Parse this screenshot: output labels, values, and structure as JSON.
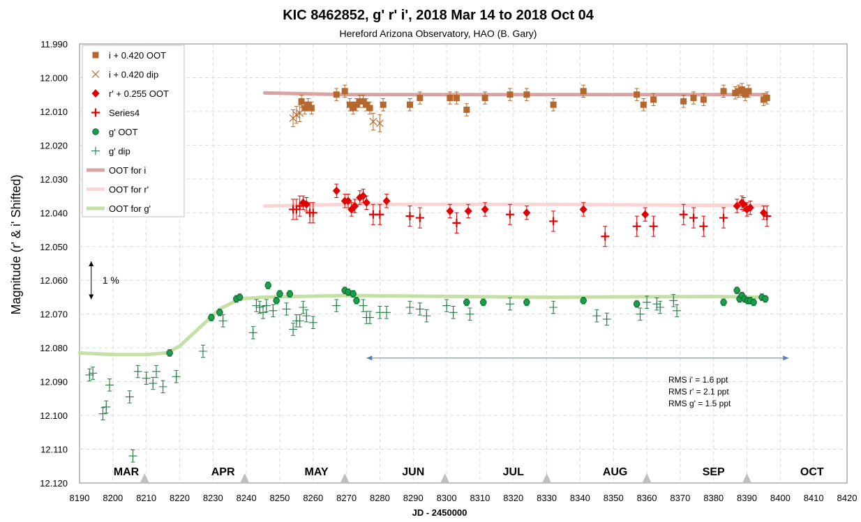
{
  "chart_data": {
    "type": "scatter",
    "title": "KIC 8462852, g' r' i', 2018 Mar 14 to 2018 Oct 04",
    "subtitle": "Hereford Arizona Observatory, HAO (B. Gary)",
    "xlabel": "JD - 2450000",
    "ylabel": "Magnitude  (r' & i' Shifted)",
    "xlim": [
      8190,
      8420
    ],
    "ylim": [
      11.99,
      12.12
    ],
    "y_inverted": true,
    "grid": true,
    "x_ticks": [
      "8190",
      "8200",
      "8210",
      "8220",
      "8230",
      "8240",
      "8250",
      "8260",
      "8270",
      "8280",
      "8290",
      "8300",
      "8310",
      "8320",
      "8330",
      "8340",
      "8350",
      "8360",
      "8370",
      "8380",
      "8390",
      "8400",
      "8410",
      "8420"
    ],
    "y_ticks": [
      "11.990",
      "12.000",
      "12.010",
      "12.020",
      "12.030",
      "12.040",
      "12.050",
      "12.060",
      "12.070",
      "12.080",
      "12.090",
      "12.100",
      "12.110",
      "12.120"
    ],
    "legend_position": "top-left",
    "series": [
      {
        "name": "i + 0.420 OOT",
        "marker": "square",
        "color": "#b5682d",
        "err": 0.0018,
        "x": [
          8256.5,
          8257.5,
          8258.5,
          8259.5,
          8267,
          8269.5,
          8271,
          8272,
          8273,
          8274,
          8275,
          8276,
          8277,
          8281,
          8289,
          8292,
          8301,
          8303,
          8306,
          8311.5,
          8319,
          8324,
          8332,
          8341,
          8357,
          8359,
          8362,
          8371,
          8374,
          8377,
          8383,
          8386.5,
          8387.5,
          8388.5,
          8389.5,
          8390.5,
          8395,
          8396
        ],
        "y": [
          12.007,
          12.009,
          12.008,
          12.009,
          12.005,
          12.004,
          12.008,
          12.009,
          12.008,
          12.007,
          12.007,
          12.008,
          12.009,
          12.008,
          12.008,
          12.006,
          12.006,
          12.006,
          12.0095,
          12.006,
          12.005,
          12.005,
          12.008,
          12.004,
          12.005,
          12.008,
          12.0065,
          12.007,
          12.006,
          12.0065,
          12.004,
          12.0045,
          12.004,
          12.0035,
          12.005,
          12.004,
          12.0065,
          12.006
        ]
      },
      {
        "name": "i + 0.420 dip",
        "marker": "x",
        "color": "#b5682d",
        "err": 0.0025,
        "x": [
          8254,
          8255,
          8256,
          8278,
          8280
        ],
        "y": [
          12.012,
          12.011,
          12.0105,
          12.013,
          12.0135
        ]
      },
      {
        "name": "r' + 0.255 OOT",
        "marker": "diamond",
        "color": "#e00000",
        "err": 0.002,
        "x": [
          8267,
          8269.5,
          8270.5,
          8271.5,
          8272.5,
          8274,
          8275,
          8276,
          8282,
          8257,
          8258,
          8301,
          8306.5,
          8311.5,
          8324,
          8341,
          8359.5,
          8387,
          8388.5,
          8389,
          8390,
          8391,
          8395
        ],
        "y": [
          12.0335,
          12.0365,
          12.0365,
          12.039,
          12.038,
          12.0355,
          12.035,
          12.037,
          12.0365,
          12.037,
          12.0375,
          12.0395,
          12.0395,
          12.039,
          12.04,
          12.039,
          12.0405,
          12.038,
          12.037,
          12.0375,
          12.039,
          12.0385,
          12.04
        ]
      },
      {
        "name": "Series4",
        "marker": "plus",
        "color": "#e00000",
        "err": 0.003,
        "x": [
          8254,
          8255,
          8256,
          8259,
          8260,
          8278,
          8280,
          8289,
          8292,
          8303,
          8319,
          8332,
          8347.5,
          8357,
          8362,
          8371,
          8374,
          8377,
          8383,
          8396
        ],
        "y": [
          12.039,
          12.039,
          12.038,
          12.04,
          12.04,
          12.0405,
          12.0405,
          12.041,
          12.0415,
          12.043,
          12.0405,
          12.0425,
          12.047,
          12.044,
          12.044,
          12.0405,
          12.0415,
          12.044,
          12.0415,
          12.041
        ]
      },
      {
        "name": "g' OOT",
        "marker": "circle",
        "color": "#17a04a",
        "err": 0.001,
        "x": [
          8217,
          8229.5,
          8232,
          8237,
          8238,
          8246.5,
          8249,
          8250,
          8253,
          8269.5,
          8270.5,
          8272,
          8273,
          8306,
          8311,
          8324,
          8341,
          8357,
          8383,
          8387,
          8387.8,
          8388.5,
          8389.3,
          8390.2,
          8391,
          8392,
          8394.5,
          8395.5
        ],
        "y": [
          12.0815,
          12.071,
          12.0695,
          12.0655,
          12.065,
          12.0615,
          12.066,
          12.064,
          12.064,
          12.063,
          12.0635,
          12.064,
          12.066,
          12.0665,
          12.0665,
          12.0665,
          12.066,
          12.067,
          12.0665,
          12.063,
          12.0655,
          12.0645,
          12.0655,
          12.066,
          12.066,
          12.0665,
          12.065,
          12.0655
        ]
      },
      {
        "name": "g' dip",
        "marker": "plus-thin",
        "color": "#1f7a40",
        "err": 0.0018,
        "x": [
          8193,
          8194,
          8197,
          8198,
          8199,
          8205,
          8206,
          8207.5,
          8210,
          8212,
          8213,
          8215,
          8219,
          8227,
          8233,
          8242,
          8243,
          8244,
          8245,
          8246,
          8248,
          8252,
          8254,
          8255,
          8256,
          8257,
          8258,
          8260,
          8267,
          8275,
          8276,
          8277,
          8280,
          8282,
          8289,
          8292,
          8294,
          8300,
          8302,
          8307,
          8319,
          8332,
          8345,
          8348,
          8358,
          8360,
          8363,
          8364,
          8368,
          8369
        ],
        "y": [
          12.088,
          12.0875,
          12.0995,
          12.0975,
          12.091,
          12.0945,
          12.112,
          12.087,
          12.089,
          12.0905,
          12.087,
          12.0915,
          12.0885,
          12.081,
          12.072,
          12.0755,
          12.0675,
          12.068,
          12.0695,
          12.0675,
          12.069,
          12.0685,
          12.0745,
          12.072,
          12.072,
          12.068,
          12.0705,
          12.0725,
          12.0675,
          12.0675,
          12.071,
          12.071,
          12.0695,
          12.0695,
          12.068,
          12.0685,
          12.0705,
          12.0675,
          12.0695,
          12.07,
          12.067,
          12.068,
          12.0705,
          12.0715,
          12.07,
          12.0665,
          12.067,
          12.068,
          12.066,
          12.069
        ]
      }
    ],
    "trend_lines": [
      {
        "name": "OOT for i",
        "color": "#d9a3a3",
        "points": [
          [
            8245.5,
            12.0045
          ],
          [
            8270,
            12.005
          ],
          [
            8330,
            12.005
          ],
          [
            8380,
            12.005
          ],
          [
            8396,
            12.005
          ]
        ]
      },
      {
        "name": "OOT for r'",
        "color": "#fcd4d4",
        "points": [
          [
            8245.5,
            12.038
          ],
          [
            8270,
            12.0375
          ],
          [
            8330,
            12.0375
          ],
          [
            8380,
            12.0378
          ],
          [
            8396,
            12.0378
          ]
        ]
      },
      {
        "name": "OOT for g'",
        "color": "#c5e0a5",
        "points": [
          [
            8190,
            12.0815
          ],
          [
            8200,
            12.082
          ],
          [
            8210,
            12.082
          ],
          [
            8216,
            12.0815
          ],
          [
            8220,
            12.0795
          ],
          [
            8226,
            12.074
          ],
          [
            8232,
            12.0685
          ],
          [
            8238,
            12.0655
          ],
          [
            8245,
            12.065
          ],
          [
            8270,
            12.0645
          ],
          [
            8330,
            12.065
          ],
          [
            8380,
            12.0648
          ],
          [
            8396,
            12.065
          ]
        ]
      }
    ],
    "months": [
      {
        "label": "MAR",
        "x": 8204
      },
      {
        "label": "APR",
        "x": 8233
      },
      {
        "label": "MAY",
        "x": 8261
      },
      {
        "label": "JUN",
        "x": 8290
      },
      {
        "label": "JUL",
        "x": 8320
      },
      {
        "label": "AUG",
        "x": 8350.5
      },
      {
        "label": "SEP",
        "x": 8380
      },
      {
        "label": "OCT",
        "x": 8409.5
      }
    ],
    "triangle_markers_x": [
      8209.5,
      8239.5,
      8269.5,
      8299.5,
      8330,
      8360,
      8390
    ],
    "annotations": {
      "pct_label": "1 %",
      "pct_span": [
        12.055,
        12.065
      ],
      "pct_x": 8193.5,
      "range_arrow": {
        "x1": 8276,
        "x2": 8402.5,
        "y": 12.083
      },
      "rms": [
        "RMS i'  = 1.6 ppt",
        "RMS r'  = 2.1 ppt",
        "RMS g' = 1.5 ppt"
      ]
    }
  },
  "colors": {
    "grid": "#d9d9d9",
    "axis": "#808080",
    "triangle": "#bfbfbf",
    "arrow": "#4f81bd"
  }
}
